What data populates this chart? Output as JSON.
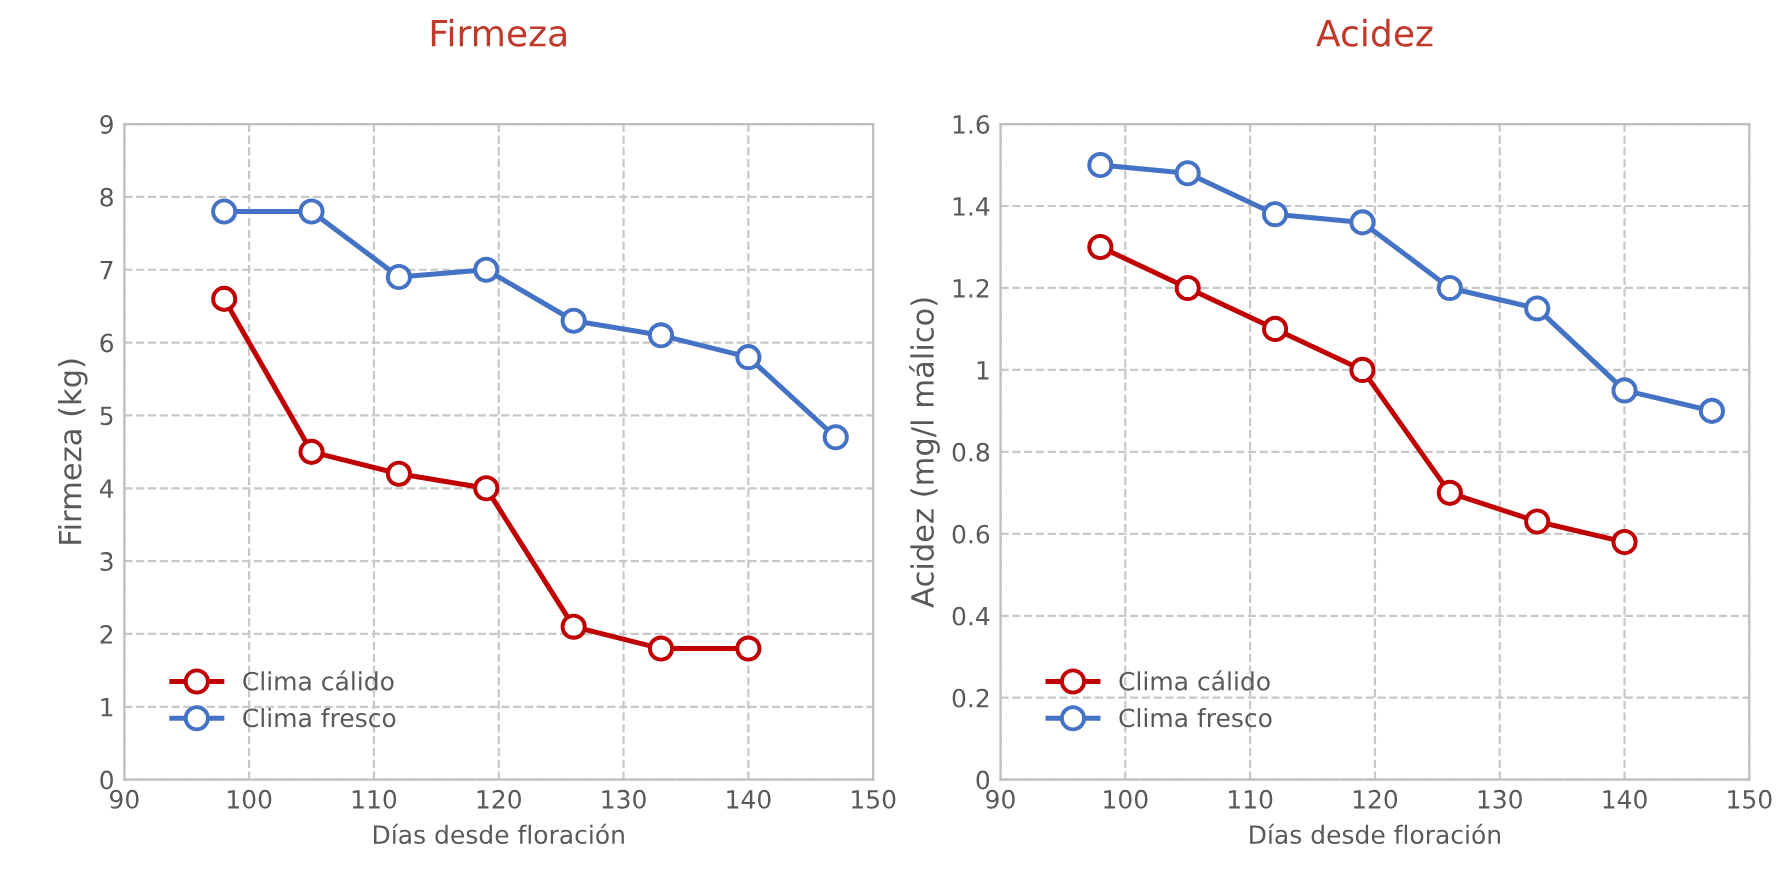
{
  "chart_data": [
    {
      "type": "line",
      "title": "Firmeza",
      "xlabel": "Días desde floración",
      "ylabel": "Firmeza (kg)",
      "xlim": [
        90,
        150
      ],
      "xticks": [
        90,
        100,
        110,
        120,
        130,
        140,
        150
      ],
      "ylim": [
        0,
        9
      ],
      "yticks": [
        0,
        1,
        2,
        3,
        4,
        5,
        6,
        7,
        8,
        9
      ],
      "grid": true,
      "legend": "bottom left",
      "marker": "circle",
      "line_style": "solid",
      "series": [
        {
          "name": "Clima cálido",
          "color": "#c00000",
          "x": [
            98,
            105,
            112,
            119,
            126,
            133,
            140
          ],
          "values": [
            6.6,
            4.5,
            4.2,
            4.0,
            2.1,
            1.8,
            1.8
          ]
        },
        {
          "name": "Clima fresco",
          "color": "#4472c4",
          "x": [
            98,
            105,
            112,
            119,
            126,
            133,
            140,
            147
          ],
          "values": [
            7.8,
            7.8,
            6.9,
            7.0,
            6.3,
            6.1,
            5.8,
            4.7
          ]
        }
      ]
    },
    {
      "type": "line",
      "title": "Acidez",
      "xlabel": "Días desde floración",
      "ylabel": "Acidez (mg/l málico)",
      "xlim": [
        90,
        150
      ],
      "xticks": [
        90,
        100,
        110,
        120,
        130,
        140,
        150
      ],
      "ylim": [
        0,
        1.6
      ],
      "yticks": [
        0,
        0.2,
        0.4,
        0.6,
        0.8,
        1,
        1.2,
        1.4,
        1.6
      ],
      "grid": true,
      "legend": "bottom left",
      "marker": "circle",
      "line_style": "solid",
      "series": [
        {
          "name": "Clima cálido",
          "color": "#c00000",
          "x": [
            98,
            105,
            112,
            119,
            126,
            133,
            140
          ],
          "values": [
            1.3,
            1.2,
            1.1,
            1.0,
            0.7,
            0.63,
            0.58
          ]
        },
        {
          "name": "Clima fresco",
          "color": "#4472c4",
          "x": [
            98,
            105,
            112,
            119,
            126,
            133,
            140,
            147
          ],
          "values": [
            1.5,
            1.48,
            1.38,
            1.36,
            1.2,
            1.15,
            0.95,
            0.9
          ]
        }
      ]
    }
  ]
}
